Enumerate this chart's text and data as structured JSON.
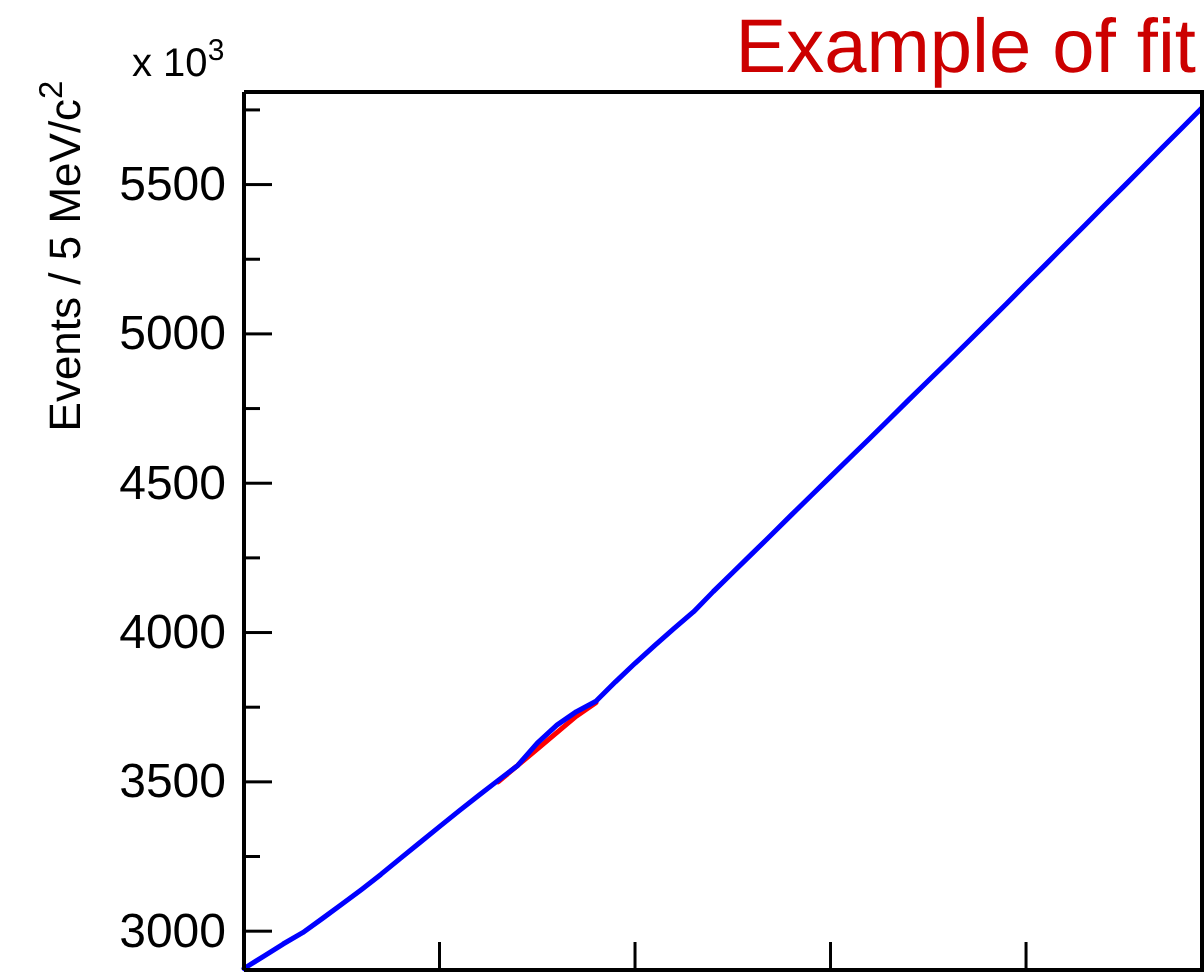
{
  "chart_data": {
    "type": "line",
    "title": "Example of fit",
    "ylabel": "Events / 5 MeV/c$^{2}$",
    "annotations": [
      "x 10$^{3}$"
    ],
    "categories": [
      null,
      null,
      null,
      null,
      null,
      null,
      null,
      null,
      null,
      null,
      null,
      null,
      null,
      null,
      null,
      null,
      null,
      null,
      null,
      null,
      null,
      null,
      null,
      null,
      null,
      null,
      null,
      null,
      null,
      null,
      null,
      null,
      null,
      null,
      null,
      null,
      null,
      null,
      null,
      null,
      null,
      null,
      null,
      null,
      null,
      null,
      null,
      null,
      null,
      null
    ],
    "series": [
      {
        "color": "#ff0000",
        "values": [
          null,
          null,
          null,
          null,
          null,
          null,
          null,
          null,
          null,
          null,
          null,
          null,
          null,
          3500,
          3555,
          3610,
          3665,
          3720,
          3765,
          null,
          null,
          null,
          null,
          null,
          null,
          null,
          null,
          null,
          null,
          null,
          null,
          null,
          null,
          null,
          null,
          null,
          null,
          null,
          null,
          null,
          null,
          null,
          null,
          null,
          null,
          null,
          null,
          null,
          null,
          null
        ]
      },
      {
        "color": "#0000ff",
        "values": [
          2875,
          2916,
          2957,
          2995,
          3042,
          3090,
          3139,
          3190,
          3244,
          3297,
          3350,
          3403,
          3454,
          3505,
          3555,
          3630,
          3690,
          3735,
          3770,
          3835,
          3897,
          3956,
          4014,
          4070,
          4137,
          4201,
          4265,
          4329,
          4394,
          4458,
          4522,
          4586,
          4650,
          4714,
          4779,
          4843,
          4907,
          4971,
          5036,
          5101,
          5167,
          5232,
          5298,
          5363,
          5429,
          5494,
          5560,
          5626,
          5691,
          5757
        ]
      }
    ],
    "ylim": [
      2870,
      5810
    ],
    "yticks": [
      3000,
      {
        "value": 3250,
        "label": null
      },
      3500,
      {
        "value": 3750,
        "label": null
      },
      4000,
      {
        "value": 4250,
        "label": null
      },
      4500,
      {
        "value": 4750,
        "label": null
      },
      5000,
      {
        "value": 5250,
        "label": null
      },
      5500,
      {
        "value": 5750,
        "label": null
      }
    ],
    "tick_labels": "y",
    "grid": false,
    "marker": "none",
    "line_style": "solid"
  }
}
